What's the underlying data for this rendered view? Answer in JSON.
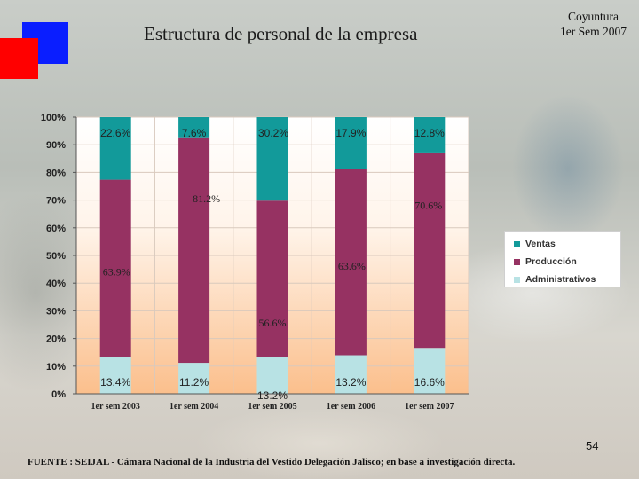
{
  "title": "Estructura de personal de la empresa",
  "subtitle_lines": [
    "Coyuntura",
    "1er Sem 2007"
  ],
  "page_number": "54",
  "source": "FUENTE : SEIJAL - Cámara Nacional de la Industria del Vestido Delegación Jalisco; en base a investigación directa.",
  "colors": {
    "ventas": "#129a9a",
    "produccion": "#963262",
    "administrativos": "#b8e2e4",
    "decor_blue": "#0a1eff",
    "decor_red": "#ff0000"
  },
  "chart_data": {
    "type": "bar",
    "stacked": true,
    "percent": true,
    "categories": [
      "1er sem 2003",
      "1er sem 2004",
      "1er sem 2005",
      "1er sem 2006",
      "1er sem 2007"
    ],
    "series": [
      {
        "name": "Administrativos",
        "values": [
          13.4,
          11.2,
          13.2,
          13.2,
          16.6
        ],
        "labels": [
          "13.4%",
          "11.2%",
          "13.2%",
          "13.2%",
          "16.6%"
        ]
      },
      {
        "name": "Producción",
        "values": [
          63.9,
          81.2,
          56.6,
          63.6,
          70.6
        ],
        "labels": [
          "63.9%",
          "81.2%",
          "56.6%",
          "63.6%",
          "70.6%"
        ]
      },
      {
        "name": "Ventas",
        "values": [
          22.6,
          7.6,
          30.2,
          17.9,
          12.8
        ],
        "labels": [
          "22.6%",
          "7.6%",
          "30.2%",
          "17.9%",
          "12.8%"
        ]
      }
    ],
    "yticks": [
      "0%",
      "10%",
      "20%",
      "30%",
      "40%",
      "50%",
      "60%",
      "70%",
      "80%",
      "90%",
      "100%"
    ],
    "ylim": [
      0,
      100
    ],
    "grid": true,
    "legend": {
      "placement": "right",
      "entries": [
        "Ventas",
        "Producción",
        "Administrativos"
      ]
    }
  }
}
